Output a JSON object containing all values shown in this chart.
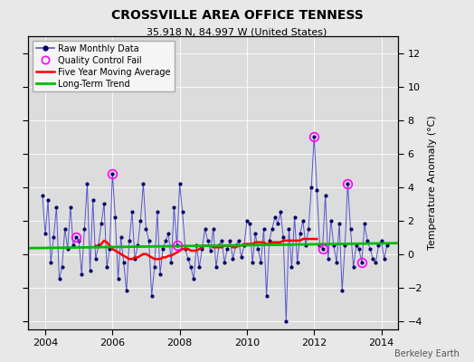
{
  "title": "CROSSVILLE AREA OFFICE TENNESS",
  "subtitle": "35.918 N, 84.997 W (United States)",
  "ylabel_right": "Temperature Anomaly (°C)",
  "footer": "Berkeley Earth",
  "xlim": [
    2003.5,
    2014.5
  ],
  "ylim": [
    -4.5,
    13
  ],
  "yticks": [
    -4,
    -2,
    0,
    2,
    4,
    6,
    8,
    10,
    12
  ],
  "xticks": [
    2004,
    2006,
    2008,
    2010,
    2012,
    2014
  ],
  "bg_color": "#dcdcdc",
  "fig_color": "#e8e8e8",
  "months": [
    2003.917,
    2004.0,
    2004.083,
    2004.167,
    2004.25,
    2004.333,
    2004.417,
    2004.5,
    2004.583,
    2004.667,
    2004.75,
    2004.833,
    2004.917,
    2005.0,
    2005.083,
    2005.167,
    2005.25,
    2005.333,
    2005.417,
    2005.5,
    2005.583,
    2005.667,
    2005.75,
    2005.833,
    2005.917,
    2006.0,
    2006.083,
    2006.167,
    2006.25,
    2006.333,
    2006.417,
    2006.5,
    2006.583,
    2006.667,
    2006.75,
    2006.833,
    2006.917,
    2007.0,
    2007.083,
    2007.167,
    2007.25,
    2007.333,
    2007.417,
    2007.5,
    2007.583,
    2007.667,
    2007.75,
    2007.833,
    2007.917,
    2008.0,
    2008.083,
    2008.167,
    2008.25,
    2008.333,
    2008.417,
    2008.5,
    2008.583,
    2008.667,
    2008.75,
    2008.833,
    2008.917,
    2009.0,
    2009.083,
    2009.167,
    2009.25,
    2009.333,
    2009.417,
    2009.5,
    2009.583,
    2009.667,
    2009.75,
    2009.833,
    2009.917,
    2010.0,
    2010.083,
    2010.167,
    2010.25,
    2010.333,
    2010.417,
    2010.5,
    2010.583,
    2010.667,
    2010.75,
    2010.833,
    2010.917,
    2011.0,
    2011.083,
    2011.167,
    2011.25,
    2011.333,
    2011.417,
    2011.5,
    2011.583,
    2011.667,
    2011.75,
    2011.833,
    2011.917,
    2012.0,
    2012.083,
    2012.167,
    2012.25,
    2012.333,
    2012.417,
    2012.5,
    2012.583,
    2012.667,
    2012.75,
    2012.833,
    2012.917,
    2013.0,
    2013.083,
    2013.167,
    2013.25,
    2013.333,
    2013.417,
    2013.5,
    2013.583,
    2013.667,
    2013.75,
    2013.833,
    2013.917,
    2014.0,
    2014.083,
    2014.167
  ],
  "values": [
    3.5,
    1.2,
    3.2,
    -0.5,
    1.0,
    2.8,
    -1.5,
    -0.8,
    1.5,
    0.3,
    2.8,
    0.5,
    1.0,
    0.8,
    -1.2,
    1.5,
    4.2,
    -1.0,
    3.2,
    -0.3,
    0.5,
    1.8,
    3.0,
    -0.8,
    0.3,
    4.8,
    2.2,
    -1.5,
    1.0,
    -0.5,
    -2.2,
    0.8,
    2.5,
    -0.3,
    0.5,
    2.0,
    4.2,
    1.5,
    0.8,
    -2.5,
    -0.8,
    2.5,
    -1.2,
    0.3,
    0.8,
    1.2,
    -0.5,
    2.8,
    0.5,
    4.2,
    2.5,
    0.3,
    -0.3,
    -0.8,
    -1.5,
    0.5,
    -0.8,
    0.3,
    1.5,
    0.8,
    0.2,
    1.5,
    -0.8,
    0.5,
    0.8,
    -0.5,
    0.3,
    0.8,
    -0.3,
    0.5,
    0.8,
    -0.2,
    0.5,
    2.0,
    1.8,
    -0.5,
    1.2,
    0.3,
    -0.5,
    1.5,
    -2.5,
    0.8,
    1.5,
    2.2,
    1.8,
    2.5,
    1.0,
    -4.0,
    1.5,
    -0.8,
    2.2,
    -0.5,
    1.2,
    2.0,
    0.5,
    1.5,
    4.0,
    7.0,
    3.8,
    0.5,
    0.3,
    3.5,
    -0.3,
    2.0,
    0.5,
    -0.5,
    1.8,
    -2.2,
    0.5,
    4.2,
    1.5,
    -0.8,
    0.5,
    0.3,
    -0.5,
    1.8,
    0.8,
    0.3,
    -0.3,
    -0.5,
    0.5,
    0.8,
    -0.3,
    0.5
  ],
  "qc_fail_indices": [
    12,
    25,
    48,
    97,
    100,
    109,
    114
  ],
  "moving_avg_x": [
    2005.5,
    2005.583,
    2005.667,
    2005.75,
    2005.833,
    2005.917,
    2006.0,
    2006.083,
    2006.167,
    2006.25,
    2006.333,
    2006.417,
    2006.5,
    2006.583,
    2006.667,
    2006.75,
    2006.833,
    2006.917,
    2007.0,
    2007.083,
    2007.167,
    2007.25,
    2007.333,
    2007.417,
    2007.5,
    2007.583,
    2007.667,
    2007.75,
    2007.833,
    2007.917,
    2008.0,
    2008.083,
    2008.167,
    2008.25,
    2008.333,
    2008.417,
    2008.5,
    2008.583,
    2008.667,
    2008.75,
    2008.833,
    2008.917,
    2009.0,
    2009.083,
    2009.167,
    2009.25,
    2009.333,
    2009.417,
    2009.5,
    2009.583,
    2009.667,
    2009.75,
    2009.833,
    2009.917,
    2010.0,
    2010.083,
    2010.167,
    2010.25,
    2010.333,
    2010.417,
    2010.5,
    2010.583,
    2010.667,
    2010.75,
    2010.833,
    2010.917,
    2011.0,
    2011.083,
    2011.167,
    2011.25,
    2011.333,
    2011.417,
    2011.5,
    2011.583,
    2011.667,
    2011.75,
    2011.833,
    2011.917,
    2012.0,
    2012.083
  ],
  "moving_avg_y": [
    0.5,
    0.4,
    0.6,
    0.8,
    0.7,
    0.5,
    0.3,
    0.2,
    0.1,
    0.0,
    -0.1,
    -0.2,
    -0.3,
    -0.3,
    -0.2,
    -0.2,
    -0.1,
    0.0,
    0.0,
    -0.1,
    -0.2,
    -0.3,
    -0.3,
    -0.3,
    -0.2,
    -0.2,
    -0.1,
    -0.1,
    0.0,
    0.1,
    0.2,
    0.3,
    0.3,
    0.3,
    0.2,
    0.2,
    0.2,
    0.3,
    0.4,
    0.5,
    0.5,
    0.5,
    0.4,
    0.4,
    0.4,
    0.4,
    0.5,
    0.5,
    0.5,
    0.4,
    0.4,
    0.5,
    0.5,
    0.6,
    0.6,
    0.6,
    0.6,
    0.7,
    0.7,
    0.7,
    0.7,
    0.6,
    0.6,
    0.7,
    0.7,
    0.7,
    0.7,
    0.8,
    0.8,
    0.8,
    0.8,
    0.8,
    0.8,
    0.8,
    0.9,
    0.9,
    0.9,
    0.9,
    0.9,
    0.9
  ],
  "trend_x": [
    2003.5,
    2014.5
  ],
  "trend_y": [
    0.35,
    0.65
  ],
  "line_color": "#5555cc",
  "marker_color": "#000066",
  "qc_color": "#ff00ff",
  "moving_avg_color": "#ff0000",
  "trend_color": "#00bb00",
  "title_fontsize": 10,
  "subtitle_fontsize": 8,
  "tick_fontsize": 8,
  "legend_fontsize": 7
}
